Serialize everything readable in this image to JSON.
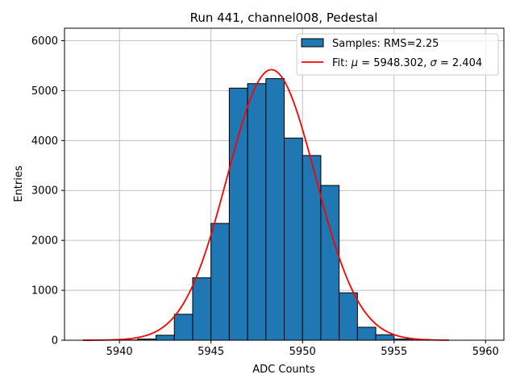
{
  "chart_data": {
    "type": "bar",
    "title": "Run 441, channel008, Pedestal",
    "xlabel": "ADC Counts",
    "ylabel": "Entries",
    "xlim": [
      5937,
      5961
    ],
    "ylim": [
      0,
      6250
    ],
    "grid": true,
    "legend_placement": "top-right",
    "x_ticks": [
      5940,
      5945,
      5950,
      5955,
      5960
    ],
    "y_ticks": [
      0,
      1000,
      2000,
      3000,
      4000,
      5000,
      6000
    ],
    "histogram": {
      "name": "Samples: RMS=2.25",
      "color": "#1f77b4",
      "edge_color": "#000000",
      "bins": [
        {
          "x0": 5940,
          "x1": 5941,
          "count": 5
        },
        {
          "x0": 5941,
          "x1": 5942,
          "count": 25
        },
        {
          "x0": 5942,
          "x1": 5943,
          "count": 100
        },
        {
          "x0": 5943,
          "x1": 5944,
          "count": 520
        },
        {
          "x0": 5944,
          "x1": 5945,
          "count": 1250
        },
        {
          "x0": 5945,
          "x1": 5946,
          "count": 2340
        },
        {
          "x0": 5946,
          "x1": 5947,
          "count": 5050
        },
        {
          "x0": 5947,
          "x1": 5948,
          "count": 5140
        },
        {
          "x0": 5948,
          "x1": 5949,
          "count": 5240
        },
        {
          "x0": 5949,
          "x1": 5950,
          "count": 4050
        },
        {
          "x0": 5950,
          "x1": 5951,
          "count": 3700
        },
        {
          "x0": 5951,
          "x1": 5952,
          "count": 3100
        },
        {
          "x0": 5952,
          "x1": 5953,
          "count": 950
        },
        {
          "x0": 5953,
          "x1": 5954,
          "count": 260
        },
        {
          "x0": 5954,
          "x1": 5955,
          "count": 110
        },
        {
          "x0": 5955,
          "x1": 5956,
          "count": 25
        },
        {
          "x0": 5956,
          "x1": 5957,
          "count": 5
        }
      ]
    },
    "fit": {
      "name": "Fit: μ = 5948.302, σ = 2.404",
      "name_parts": [
        "Fit: ",
        "μ",
        " = 5948.302, ",
        "σ",
        " = 2.404"
      ],
      "color": "#ff0000",
      "mu": 5948.302,
      "sigma": 2.404,
      "amplitude": 5420,
      "x_range": [
        5938,
        5958
      ]
    }
  }
}
